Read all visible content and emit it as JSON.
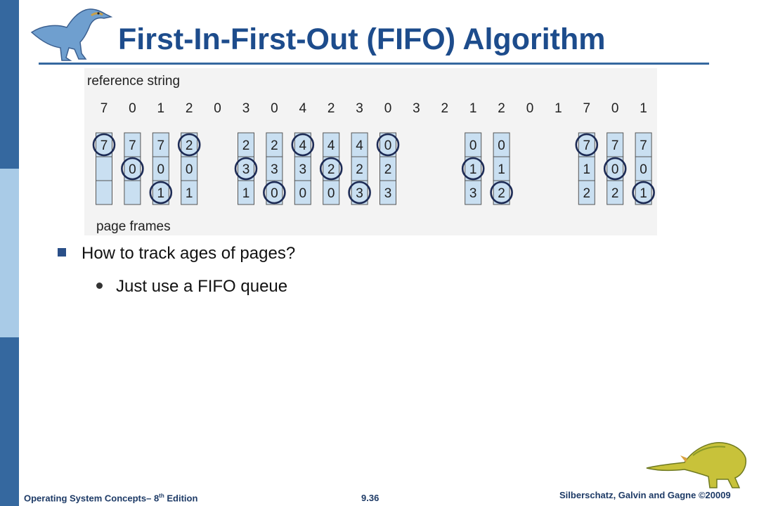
{
  "slide": {
    "title": "First-In-First-Out (FIFO) Algorithm"
  },
  "figure": {
    "reference_label": "reference string",
    "frames_label": "page frames",
    "reference_string": [
      "7",
      "0",
      "1",
      "2",
      "0",
      "3",
      "0",
      "4",
      "2",
      "3",
      "0",
      "3",
      "2",
      "1",
      "2",
      "0",
      "1",
      "7",
      "0",
      "1"
    ],
    "columns": [
      {
        "ref_index": 0,
        "frames": [
          "7",
          "",
          ""
        ],
        "circled": 0
      },
      {
        "ref_index": 1,
        "frames": [
          "7",
          "0",
          ""
        ],
        "circled": 1
      },
      {
        "ref_index": 2,
        "frames": [
          "7",
          "0",
          "1"
        ],
        "circled": 2
      },
      {
        "ref_index": 3,
        "frames": [
          "2",
          "0",
          "1"
        ],
        "circled": 0
      },
      {
        "ref_index": 5,
        "frames": [
          "2",
          "3",
          "1"
        ],
        "circled": 1
      },
      {
        "ref_index": 6,
        "frames": [
          "2",
          "3",
          "0"
        ],
        "circled": 2
      },
      {
        "ref_index": 7,
        "frames": [
          "4",
          "3",
          "0"
        ],
        "circled": 0
      },
      {
        "ref_index": 8,
        "frames": [
          "4",
          "2",
          "0"
        ],
        "circled": 1
      },
      {
        "ref_index": 9,
        "frames": [
          "4",
          "2",
          "3"
        ],
        "circled": 2
      },
      {
        "ref_index": 10,
        "frames": [
          "0",
          "2",
          "3"
        ],
        "circled": 0
      },
      {
        "ref_index": 13,
        "frames": [
          "0",
          "1",
          "3"
        ],
        "circled": 1
      },
      {
        "ref_index": 14,
        "frames": [
          "0",
          "1",
          "2"
        ],
        "circled": 2
      },
      {
        "ref_index": 17,
        "frames": [
          "7",
          "1",
          "2"
        ],
        "circled": 0
      },
      {
        "ref_index": 18,
        "frames": [
          "7",
          "0",
          "2"
        ],
        "circled": 1
      },
      {
        "ref_index": 19,
        "frames": [
          "7",
          "0",
          "1"
        ],
        "circled": 2
      }
    ]
  },
  "bullets": {
    "main": "How to track ages of pages?",
    "sub": "Just use a FIFO queue"
  },
  "footer": {
    "book": "Operating System Concepts– 8",
    "book_sup": "th",
    "book_end": " Edition",
    "page": "9.36",
    "copyright": "Silberschatz, Galvin and Gagne ©20009"
  },
  "colors": {
    "title": "#1d4c8c",
    "sidebar": "#35689f",
    "frame_fill": "#c9dff1",
    "circle": "#1d2b55"
  }
}
